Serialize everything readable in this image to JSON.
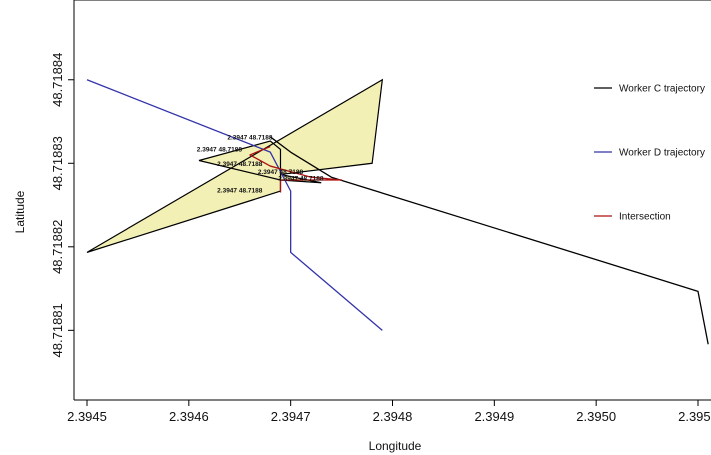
{
  "chart_data": {
    "type": "line",
    "xlabel": "Longitude",
    "ylabel": "Latitude",
    "xlim": [
      2.3945,
      2.3951
    ],
    "ylim": [
      2.0,
      14.5
    ],
    "x_ticks": [
      "2.3945",
      "2.3946",
      "2.3947",
      "2.3948",
      "2.3949",
      "2.3950",
      "2.3951"
    ],
    "x_tick_values": [
      2.3945,
      2.3946,
      2.3947,
      2.3948,
      2.3949,
      2.395,
      2.3951
    ],
    "y_ticks": [
      "48.71881",
      "48.71882",
      "48.71883",
      "48.71884"
    ],
    "y_tick_values": [
      4,
      7,
      10,
      13
    ],
    "legend_position": "right",
    "polygon": {
      "name": "",
      "fill": "#f2f0b5",
      "stroke": "#000000",
      "points": [
        [
          2.3945,
          6.8
        ],
        [
          2.39479,
          13.0
        ],
        [
          2.39478,
          10.0
        ],
        [
          2.39469,
          9.6
        ],
        [
          2.39473,
          9.3
        ],
        [
          2.39469,
          9.4
        ],
        [
          2.39461,
          10.1
        ],
        [
          2.39468,
          10.8
        ],
        [
          2.39469,
          10.5
        ],
        [
          2.39469,
          9.0
        ],
        [
          2.3945,
          6.8
        ]
      ]
    },
    "series": [
      {
        "name": "Worker C trajectory",
        "color": "#000000",
        "points": [
          [
            2.39468,
            10.95
          ],
          [
            2.3947,
            10.4
          ],
          [
            2.39474,
            9.5
          ],
          [
            2.3951,
            5.4
          ],
          [
            2.39511,
            3.5
          ]
        ]
      },
      {
        "name": "Worker D trajectory",
        "color": "#3333aa",
        "points": [
          [
            2.3945,
            13.0
          ],
          [
            2.39468,
            10.4
          ],
          [
            2.3947,
            9.0
          ],
          [
            2.3947,
            6.8
          ],
          [
            2.39479,
            4.0
          ]
        ]
      },
      {
        "name": "Intersection",
        "color": "#aa1111",
        "points": [
          [
            2.39468,
            10.6
          ],
          [
            2.39466,
            10.3
          ],
          [
            2.39468,
            9.9
          ],
          [
            2.39469,
            9.8
          ],
          [
            2.39472,
            9.5
          ],
          [
            2.39475,
            9.4
          ],
          [
            2.39469,
            9.4
          ],
          [
            2.39469,
            8.95
          ]
        ]
      }
    ],
    "annotations": [
      {
        "text": "2.3947 48.7188",
        "x": 2.39466,
        "y": 10.85
      },
      {
        "text": "2.3947 48.7188",
        "x": 2.39463,
        "y": 10.43
      },
      {
        "text": "2.3947 48.7188",
        "x": 2.39465,
        "y": 9.9
      },
      {
        "text": "2.3947 48.7188",
        "x": 2.39469,
        "y": 9.62
      },
      {
        "text": "2.3947 48.7188",
        "x": 2.39471,
        "y": 9.38
      },
      {
        "text": "2.3947 48.7188",
        "x": 2.39465,
        "y": 8.95
      }
    ]
  }
}
